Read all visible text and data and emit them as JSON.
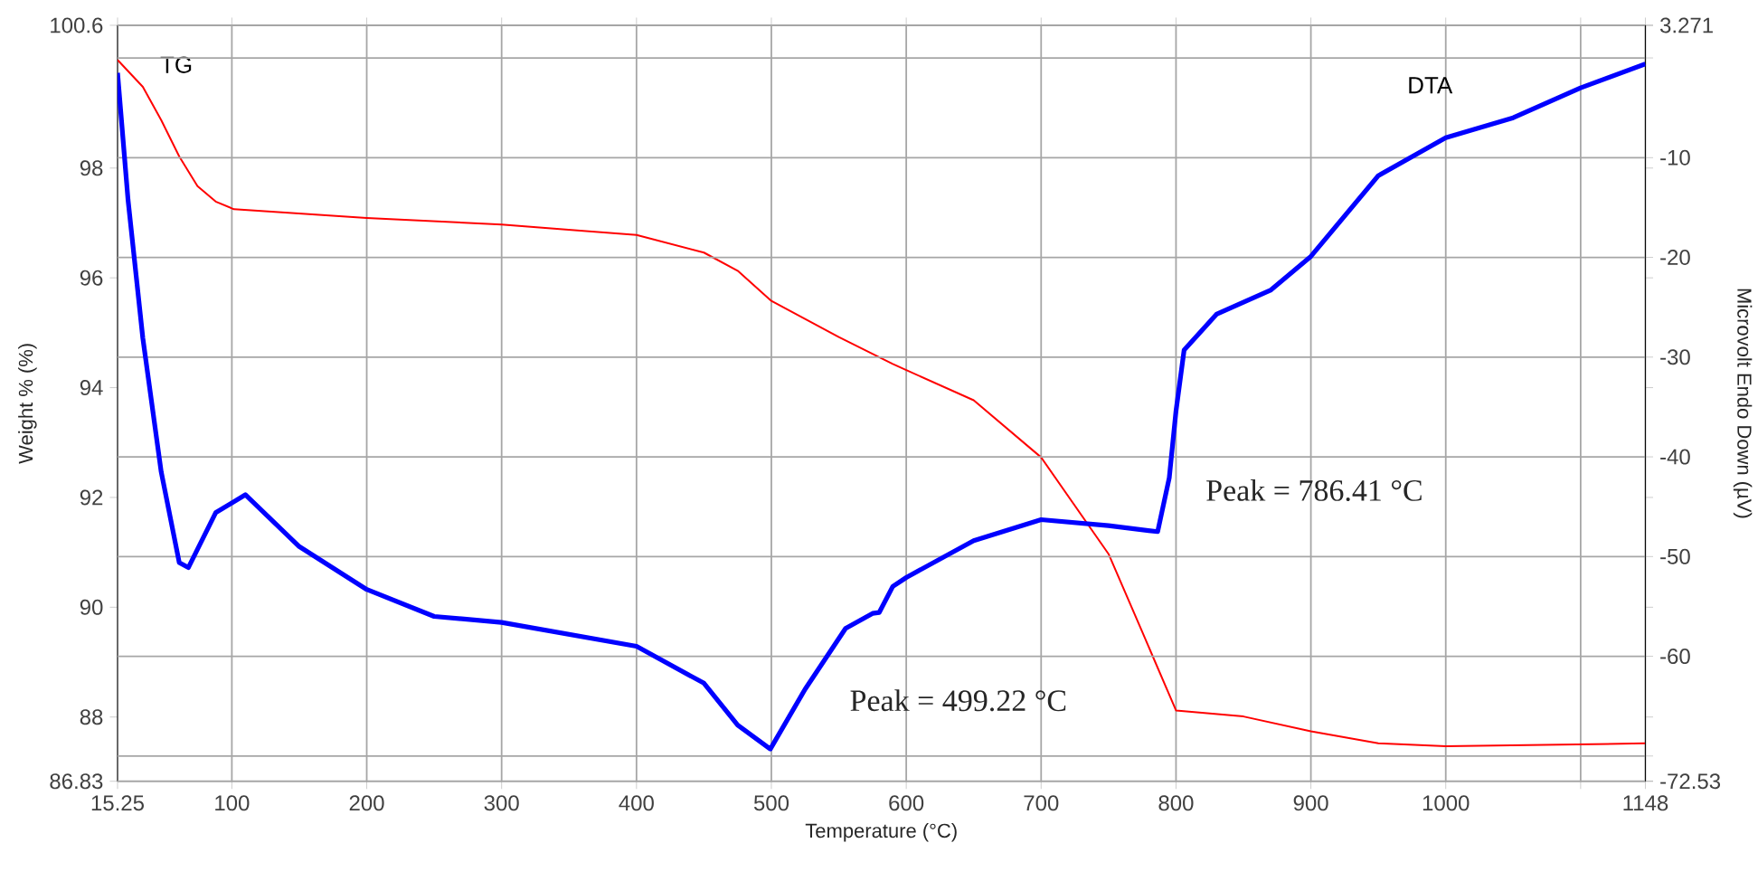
{
  "chart_data": {
    "type": "line",
    "xlabel": "Temperature (°C)",
    "ylabel": "Weight % (%)",
    "y2label": "Microvolt Endo Down (µV)",
    "xlim": [
      15.25,
      1148
    ],
    "ylim": [
      86.83,
      100.6
    ],
    "y2lim": [
      -72.53,
      3.271
    ],
    "xticks": [
      15.25,
      100,
      200,
      300,
      400,
      500,
      600,
      700,
      800,
      900,
      1000,
      {
        "value": 1100,
        "label": null
      },
      1148
    ],
    "yticks": [
      86.83,
      88,
      90,
      92,
      94,
      96,
      98,
      100.6
    ],
    "y2ticks": [
      -72.53,
      {
        "value": -70,
        "label": null
      },
      -60,
      -50,
      -40,
      -30,
      -20,
      -10,
      {
        "value": 0,
        "label": null
      },
      3.271
    ],
    "grid": true,
    "series": [
      {
        "name": "TG",
        "color": "#ff0000",
        "x": [
          15.25,
          34,
          47.7,
          61,
          74.5,
          88,
          101.6,
          200,
          300,
          400,
          450,
          475,
          500,
          550,
          590,
          600,
          650,
          700,
          750,
          775,
          800,
          850,
          900,
          950,
          1000,
          1148
        ],
        "values": [
          99.97,
          99.48,
          98.87,
          98.21,
          97.67,
          97.39,
          97.25,
          97.09,
          96.97,
          96.78,
          96.46,
          96.13,
          95.58,
          94.92,
          94.43,
          94.32,
          93.77,
          92.73,
          90.97,
          89.55,
          88.12,
          88.01,
          87.74,
          87.52,
          87.47,
          87.52
        ]
      },
      {
        "name": "DTA",
        "color": "#0000ff",
        "axis": "y2",
        "x": [
          15.25,
          23,
          34,
          47.6,
          61,
          67.8,
          88,
          110,
          150,
          200,
          250,
          300,
          350,
          400,
          450,
          475,
          499.22,
          525,
          555,
          575,
          580,
          590,
          600,
          650,
          700,
          750,
          786.41,
          795,
          800,
          806,
          830,
          870,
          900,
          950,
          1000,
          1050,
          1100,
          1148
        ],
        "values": [
          -1.5,
          -14.2,
          -28.1,
          -41.5,
          -50.6,
          -51.1,
          -45.6,
          -43.8,
          -49.0,
          -53.3,
          -56.0,
          -56.6,
          -57.8,
          -59.0,
          -62.7,
          -66.9,
          -69.3,
          -63.3,
          -57.2,
          -55.7,
          -55.6,
          -53.0,
          -52.1,
          -48.4,
          -46.3,
          -46.9,
          -47.5,
          -42.1,
          -35.4,
          -29.3,
          -25.7,
          -23.3,
          -19.9,
          -11.8,
          -8.0,
          -6.0,
          -3.0,
          -0.6
        ]
      }
    ],
    "annotations": [
      "Peak = 499.22 °C",
      "Peak = 786.41 °C"
    ]
  }
}
